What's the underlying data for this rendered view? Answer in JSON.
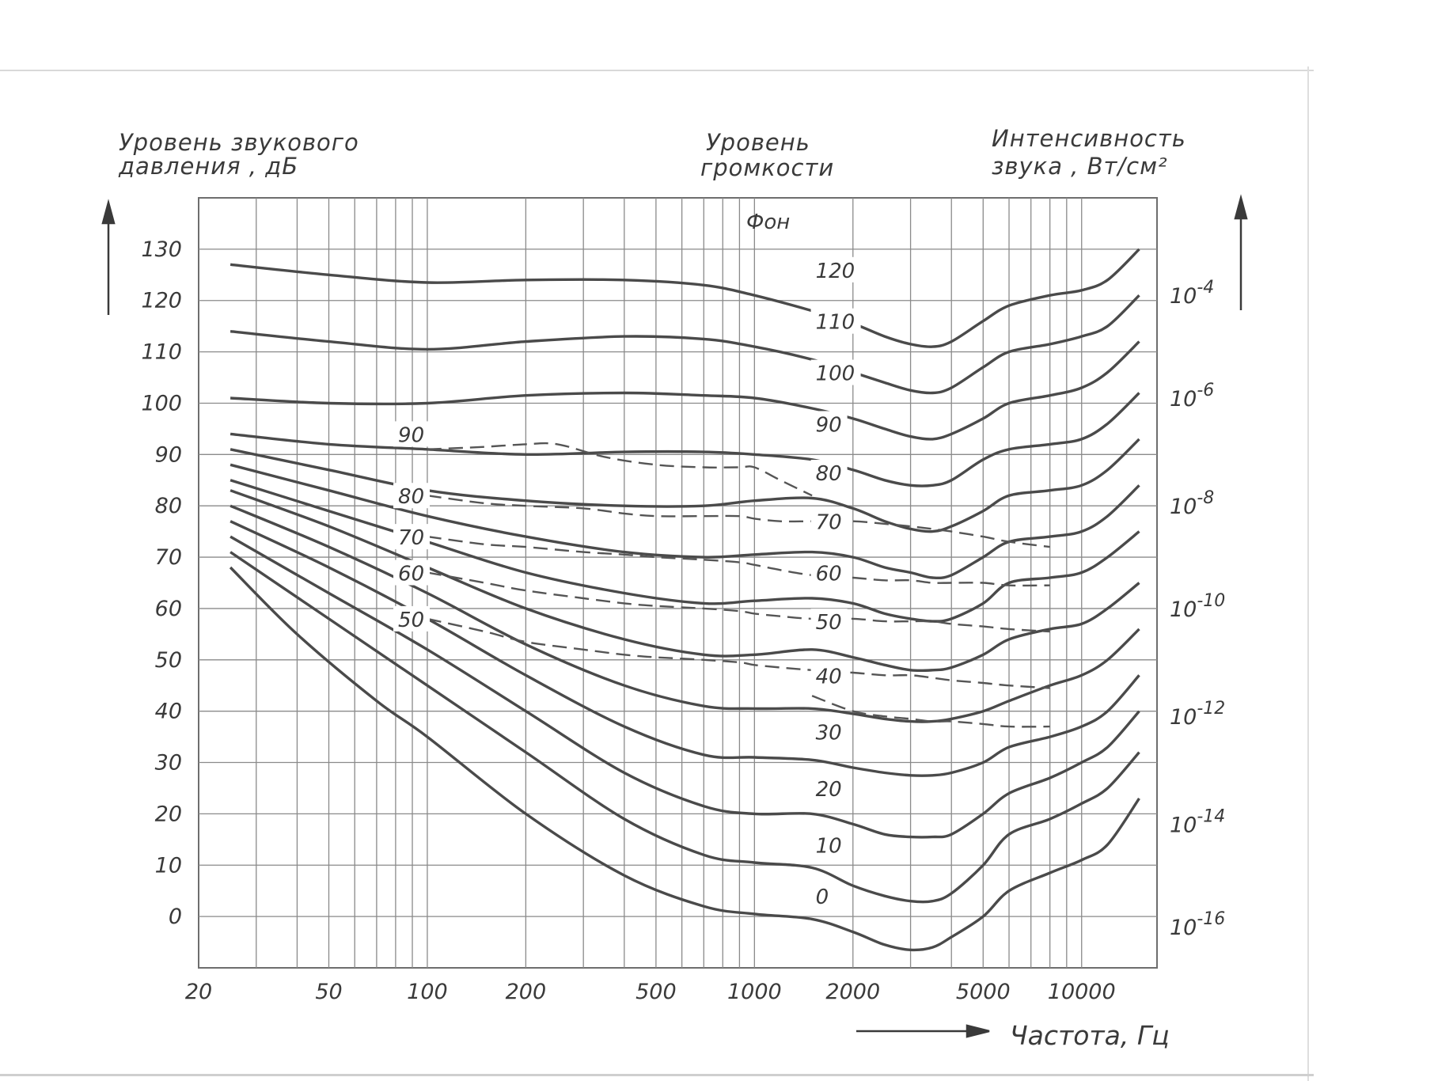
{
  "chart_data": {
    "type": "line",
    "left_axis_title": [
      "Уровень звукового",
      "давления , дБ"
    ],
    "middle_title": [
      "Уровень",
      "громкости"
    ],
    "right_axis_title": [
      "Интенсивность",
      "звука , Вт/см²"
    ],
    "phon_unit": "Фон",
    "xlabel": "Частота, Гц",
    "x_scale": "log",
    "xlim": [
      20,
      17000
    ],
    "ylim": [
      -10,
      140
    ],
    "x_ticks": [
      20,
      50,
      100,
      200,
      500,
      1000,
      2000,
      5000,
      10000
    ],
    "x_tick_labels": [
      "20",
      "50",
      "100",
      "200",
      "500",
      "1000",
      "2000",
      "5000",
      "10000"
    ],
    "y_ticks": [
      0,
      10,
      20,
      30,
      40,
      50,
      60,
      70,
      80,
      90,
      100,
      110,
      120,
      130
    ],
    "y_tick_labels": [
      "0",
      "10",
      "20",
      "30",
      "40",
      "50",
      "60",
      "70",
      "80",
      "90",
      "100",
      "110",
      "120",
      "130"
    ],
    "right_ticks": [
      {
        "y": -2,
        "base": "10",
        "exp": "-16"
      },
      {
        "y": 18,
        "base": "10",
        "exp": "-14"
      },
      {
        "y": 39,
        "base": "10",
        "exp": "-12"
      },
      {
        "y": 60,
        "base": "10",
        "exp": "-10"
      },
      {
        "y": 80,
        "base": "10",
        "exp": "-8"
      },
      {
        "y": 101,
        "base": "10",
        "exp": "-6"
      },
      {
        "y": 121,
        "base": "10",
        "exp": "-4"
      }
    ],
    "grid": true,
    "series": [
      {
        "name": "0",
        "label_at": [
          1700,
          4
        ],
        "x": [
          25,
          40,
          70,
          100,
          200,
          400,
          700,
          1000,
          1500,
          2000,
          2500,
          3000,
          3500,
          4000,
          5000,
          6000,
          8000,
          10000,
          12000,
          15000
        ],
        "y": [
          68,
          55,
          42,
          35,
          20,
          8,
          2,
          0.5,
          -0.5,
          -3,
          -5.5,
          -6.5,
          -6,
          -4,
          0,
          5,
          8.5,
          11,
          14,
          23
        ]
      },
      {
        "name": "10",
        "label_at": [
          1700,
          14
        ],
        "x": [
          25,
          50,
          100,
          200,
          400,
          700,
          1000,
          1500,
          2000,
          2500,
          3000,
          3500,
          4000,
          5000,
          6000,
          8000,
          10000,
          12000,
          15000
        ],
        "y": [
          71,
          58,
          45,
          32,
          19,
          12,
          10.5,
          9.5,
          6,
          4,
          3,
          3,
          4.5,
          10,
          16,
          19,
          22,
          25,
          32
        ]
      },
      {
        "name": "20",
        "label_at": [
          1700,
          25
        ],
        "x": [
          25,
          50,
          100,
          200,
          400,
          700,
          1000,
          1500,
          2000,
          2500,
          3000,
          3500,
          4000,
          5000,
          6000,
          8000,
          10000,
          12000,
          15000
        ],
        "y": [
          74,
          63,
          52,
          40,
          28,
          21.5,
          20,
          20,
          18,
          16,
          15.5,
          15.5,
          16,
          20,
          24,
          27,
          30,
          33,
          40
        ]
      },
      {
        "name": "30",
        "label_at": [
          1700,
          36
        ],
        "x": [
          25,
          50,
          100,
          200,
          400,
          700,
          1000,
          1500,
          2000,
          2500,
          3000,
          3500,
          4000,
          5000,
          6000,
          8000,
          10000,
          12000,
          15000
        ],
        "y": [
          77,
          68,
          58,
          47,
          37,
          31.5,
          31,
          30.5,
          29,
          28,
          27.5,
          27.5,
          28,
          30,
          33,
          35,
          37,
          40,
          47
        ]
      },
      {
        "name": "40",
        "label_at": [
          1700,
          47
        ],
        "x": [
          25,
          50,
          100,
          200,
          400,
          700,
          1000,
          1500,
          2000,
          2500,
          3000,
          3500,
          4000,
          5000,
          6000,
          8000,
          10000,
          12000,
          15000
        ],
        "y": [
          80,
          72,
          63,
          53,
          45,
          41,
          40.5,
          40.5,
          39.5,
          38.5,
          38,
          38,
          38.5,
          40,
          42,
          45,
          47,
          50,
          56
        ]
      },
      {
        "name": "50",
        "label_at": [
          1700,
          57.5
        ],
        "x": [
          25,
          50,
          100,
          200,
          400,
          700,
          1000,
          1500,
          2000,
          2500,
          3000,
          3500,
          4000,
          5000,
          6000,
          8000,
          10000,
          12000,
          15000
        ],
        "y": [
          83,
          76,
          68,
          60,
          54,
          51,
          51,
          52,
          50.5,
          49,
          48,
          48,
          48.5,
          51,
          54,
          56,
          57,
          60,
          65
        ]
      },
      {
        "name": "60",
        "label_at": [
          1700,
          67
        ],
        "x": [
          25,
          50,
          100,
          200,
          400,
          700,
          1000,
          1500,
          2000,
          2500,
          3000,
          3500,
          4000,
          5000,
          6000,
          8000,
          10000,
          12000,
          15000
        ],
        "y": [
          85,
          79,
          73,
          67,
          63,
          61,
          61.5,
          62,
          61,
          59,
          58,
          57.5,
          58,
          61,
          65,
          66,
          67,
          70,
          75
        ]
      },
      {
        "name": "70",
        "label_at": [
          1700,
          77
        ],
        "x": [
          25,
          50,
          100,
          200,
          400,
          700,
          1000,
          1500,
          2000,
          2500,
          3000,
          3500,
          4000,
          5000,
          6000,
          8000,
          10000,
          12000,
          15000
        ],
        "y": [
          88,
          83,
          78,
          74,
          71,
          70,
          70.5,
          71,
          70,
          68,
          67,
          66,
          66.5,
          70,
          73,
          74,
          75,
          78,
          84
        ]
      },
      {
        "name": "80",
        "label_at": [
          1700,
          86.5
        ],
        "x": [
          25,
          50,
          100,
          200,
          400,
          700,
          1000,
          1500,
          2000,
          2500,
          3000,
          3500,
          4000,
          5000,
          6000,
          8000,
          10000,
          12000,
          15000
        ],
        "y": [
          91,
          87,
          83,
          81,
          80,
          80,
          81,
          81.5,
          79.5,
          77,
          75.5,
          75,
          76,
          79,
          82,
          83,
          84,
          87,
          93
        ]
      },
      {
        "name": "90",
        "label_at": [
          1700,
          96
        ],
        "x": [
          25,
          50,
          100,
          200,
          400,
          700,
          1000,
          1500,
          2000,
          2500,
          3000,
          3500,
          4000,
          5000,
          6000,
          8000,
          10000,
          12000,
          15000
        ],
        "y": [
          94,
          92,
          91,
          90,
          90.5,
          90.5,
          90,
          89,
          87,
          85,
          84,
          84,
          85,
          89,
          91,
          92,
          93,
          96,
          102
        ]
      },
      {
        "name": "100",
        "label_at": [
          1700,
          106
        ],
        "x": [
          25,
          50,
          100,
          200,
          400,
          700,
          1000,
          1500,
          2000,
          2500,
          3000,
          3500,
          4000,
          5000,
          6000,
          8000,
          10000,
          12000,
          15000
        ],
        "y": [
          101,
          100,
          100,
          101.5,
          102,
          101.5,
          101,
          99,
          97,
          95,
          93.5,
          93,
          94,
          97,
          100,
          101.5,
          103,
          106,
          112
        ]
      },
      {
        "name": "110",
        "label_at": [
          1700,
          116
        ],
        "x": [
          25,
          50,
          100,
          200,
          400,
          700,
          1000,
          1500,
          2000,
          2500,
          3000,
          3500,
          4000,
          5000,
          6000,
          8000,
          10000,
          12000,
          15000
        ],
        "y": [
          114,
          112,
          110.5,
          112,
          113,
          112.5,
          111,
          108.5,
          106,
          104,
          102.5,
          102,
          103,
          107,
          110,
          111.5,
          113,
          115,
          121
        ]
      },
      {
        "name": "120",
        "label_at": [
          1700,
          126
        ],
        "x": [
          25,
          50,
          100,
          200,
          400,
          700,
          1000,
          1500,
          2000,
          2500,
          3000,
          3500,
          4000,
          5000,
          6000,
          8000,
          10000,
          12000,
          15000
        ],
        "y": [
          127,
          125,
          123.5,
          124,
          124,
          123,
          121,
          118,
          115.5,
          113,
          111.5,
          111,
          112,
          116,
          119,
          121,
          122,
          124,
          130
        ]
      }
    ],
    "dashed_series": [
      {
        "name": "90",
        "label_at": [
          100,
          94
        ],
        "x": [
          100,
          150,
          200,
          250,
          350,
          500,
          700,
          900,
          1000,
          1200,
          1500
        ],
        "y": [
          91,
          91.5,
          92,
          92,
          89.5,
          88,
          87.5,
          87.5,
          87.5,
          85,
          82
        ]
      },
      {
        "name": "80",
        "label_at": [
          100,
          82
        ],
        "x": [
          100,
          150,
          200,
          300,
          400,
          500,
          700,
          900,
          1000,
          1200,
          1500,
          2000,
          2500,
          3000,
          3500,
          4000,
          5000,
          6000,
          8000
        ],
        "y": [
          82,
          80.5,
          80,
          79.5,
          78.5,
          78,
          78,
          78,
          77.5,
          77,
          77,
          77,
          76.5,
          76,
          75.5,
          75,
          74,
          73,
          72
        ]
      },
      {
        "name": "70",
        "label_at": [
          100,
          74
        ],
        "x": [
          100,
          150,
          200,
          300,
          400,
          500,
          700,
          900,
          1000,
          1200,
          1500,
          2000,
          2500,
          3000,
          3500,
          4000,
          5000,
          6000,
          8000
        ],
        "y": [
          74,
          72.5,
          72,
          71,
          70.5,
          70,
          69.5,
          69,
          68.5,
          67.5,
          66.5,
          66,
          65.5,
          65.5,
          65,
          65,
          65,
          64.5,
          64.5
        ]
      },
      {
        "name": "60",
        "label_at": [
          100,
          67
        ],
        "x": [
          100,
          150,
          200,
          300,
          400,
          500,
          700,
          900,
          1000,
          1200,
          1500,
          2000,
          2500,
          3000,
          3500,
          4000,
          5000,
          6000,
          8000
        ],
        "y": [
          67,
          65,
          63.5,
          62,
          61,
          60.5,
          60,
          59.5,
          59,
          58.5,
          58,
          58,
          57.5,
          57.5,
          57.5,
          57,
          56.5,
          56,
          55.5
        ]
      },
      {
        "name": "50",
        "label_at": [
          100,
          58
        ],
        "x": [
          100,
          150,
          200,
          300,
          400,
          500,
          700,
          900,
          1000,
          1200,
          1500,
          2000,
          2500,
          3000,
          3500,
          4000,
          5000,
          6000,
          8000
        ],
        "y": [
          58,
          55.5,
          53.5,
          52,
          51,
          50.5,
          50,
          49.5,
          49,
          48.5,
          48,
          47.5,
          47,
          47,
          46.5,
          46,
          45.5,
          45,
          44.5
        ]
      },
      {
        "name": "",
        "label_at": null,
        "x": [
          1500,
          2000,
          2500,
          3000,
          3500,
          4000,
          5000,
          6000,
          8000
        ],
        "y": [
          43,
          40,
          39,
          38.5,
          38,
          38,
          37.5,
          37,
          37
        ]
      }
    ]
  }
}
